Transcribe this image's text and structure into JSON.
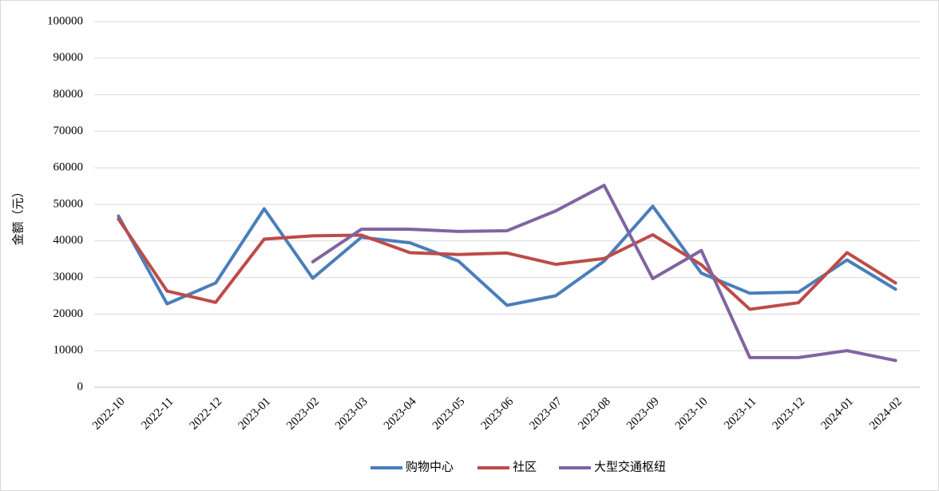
{
  "chart_data": {
    "type": "line",
    "y_label": "金额（元）",
    "categories": [
      "2022-10",
      "2022-11",
      "2022-12",
      "2023-01",
      "2023-02",
      "2023-03",
      "2023-04",
      "2023-05",
      "2023-06",
      "2023-07",
      "2023-08",
      "2023-09",
      "2023-10",
      "2023-11",
      "2023-12",
      "2024-01",
      "2024-02"
    ],
    "series": [
      {
        "name": "购物中心",
        "color": "#4a7ebb",
        "values": [
          46800,
          22800,
          28500,
          48800,
          29800,
          41000,
          39500,
          34500,
          22400,
          25000,
          34500,
          49500,
          31200,
          25700,
          26000,
          34800,
          26800
        ]
      },
      {
        "name": "社区",
        "color": "#be4b48",
        "values": [
          46000,
          26300,
          23200,
          40500,
          41400,
          41600,
          36800,
          36300,
          36700,
          33600,
          35200,
          41700,
          33500,
          21300,
          23100,
          36800,
          28500
        ]
      },
      {
        "name": "大型交通枢纽",
        "color": "#8064a2",
        "values": [
          null,
          null,
          null,
          null,
          34300,
          43200,
          43200,
          42600,
          42800,
          48200,
          55200,
          29700,
          37400,
          8100,
          8100,
          10000,
          7300
        ]
      }
    ],
    "ylim": [
      0,
      100000
    ],
    "yticks": [
      0,
      10000,
      20000,
      30000,
      40000,
      50000,
      60000,
      70000,
      80000,
      90000,
      100000
    ],
    "grid": true,
    "legend": "bottom"
  }
}
